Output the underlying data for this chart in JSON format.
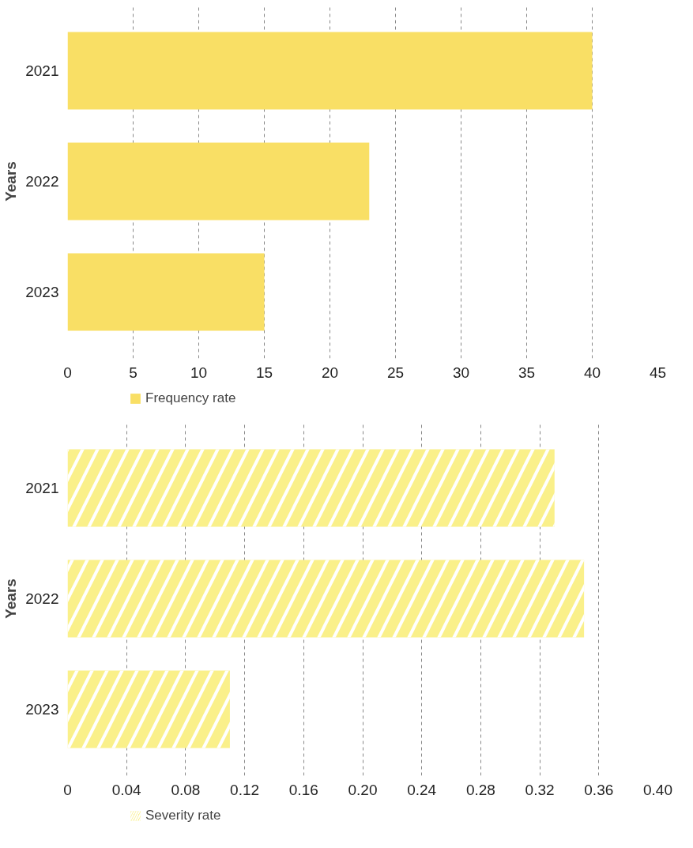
{
  "chart_data": [
    {
      "type": "bar",
      "orientation": "horizontal",
      "ylabel": "Years",
      "categories": [
        "2021",
        "2022",
        "2023"
      ],
      "series": [
        {
          "name": "Frequency rate",
          "color": "#f9df65",
          "values": [
            40,
            23,
            15
          ]
        }
      ],
      "xlim": [
        0,
        45
      ],
      "xticks": [
        0,
        5,
        10,
        15,
        20,
        25,
        30,
        35,
        40,
        45
      ],
      "grid": "x",
      "legend": "bottom left"
    },
    {
      "type": "bar",
      "orientation": "horizontal",
      "ylabel": "Years",
      "categories": [
        "2021",
        "2022",
        "2023"
      ],
      "series": [
        {
          "name": "Severity rate",
          "color": "#faf08a",
          "values": [
            0.33,
            0.35,
            0.11
          ]
        }
      ],
      "xlim": [
        0,
        0.4
      ],
      "xticks": [
        0,
        {
          "value": 0.04,
          "label": "0.04"
        },
        {
          "value": 0.08,
          "label": "0.08"
        },
        {
          "value": 0.12,
          "label": "0.12"
        },
        {
          "value": 0.16,
          "label": "0.16"
        },
        {
          "value": 0.2,
          "label": "0.20"
        },
        {
          "value": 0.24,
          "label": "0.24"
        },
        {
          "value": 0.28,
          "label": "0.28"
        },
        {
          "value": 0.32,
          "label": "0.32"
        },
        {
          "value": 0.36,
          "label": "0.36"
        },
        {
          "value": 0.4,
          "label": "0.40"
        }
      ],
      "grid": "x",
      "legend": "bottom left"
    }
  ]
}
